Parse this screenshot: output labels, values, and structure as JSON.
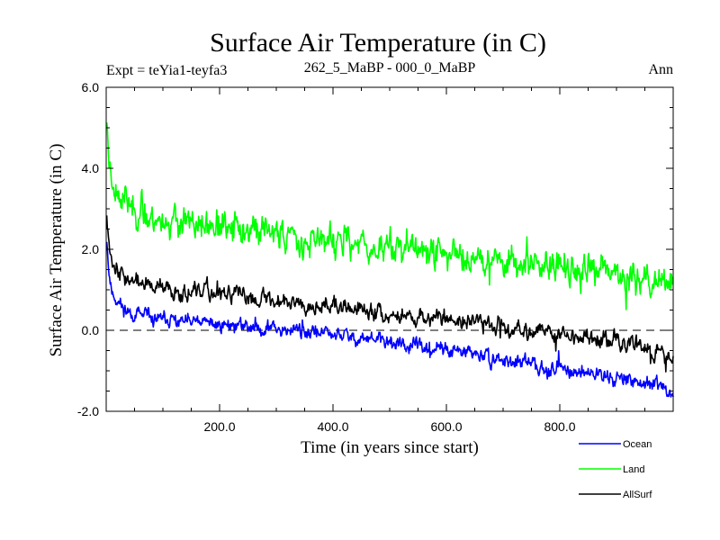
{
  "chart_data": {
    "type": "line",
    "title": "Surface Air Temperature (in C)",
    "subtitle_left": "Expt = teYia1-teyfa3",
    "subtitle_center": "262_5_MaBP - 000_0_MaBP",
    "subtitle_right": "Ann",
    "xlabel": "Time (in years since start)",
    "ylabel": "Surface Air Temperature (in C)",
    "xlim": [
      0,
      1000
    ],
    "ylim": [
      -2.0,
      6.0
    ],
    "x_ticks": [
      200,
      400,
      600,
      800
    ],
    "x_tick_labels": [
      "200.0",
      "400.0",
      "600.0",
      "800.0"
    ],
    "y_ticks": [
      -2,
      0,
      2,
      4,
      6
    ],
    "y_tick_labels": [
      "-2.0",
      "0.0",
      "2.0",
      "4.0",
      "6.0"
    ],
    "reference_line": 0.0,
    "series": [
      {
        "name": "Ocean",
        "color": "#0000ff",
        "x": [
          0,
          5,
          10,
          20,
          35,
          50,
          75,
          100,
          150,
          200,
          250,
          300,
          350,
          400,
          450,
          500,
          550,
          600,
          650,
          700,
          750,
          800,
          850,
          900,
          950,
          1000
        ],
        "values": [
          2.5,
          1.4,
          0.95,
          0.7,
          0.5,
          0.4,
          0.3,
          0.25,
          0.2,
          0.15,
          0.1,
          0.05,
          0.0,
          -0.1,
          -0.2,
          -0.3,
          -0.4,
          -0.5,
          -0.6,
          -0.75,
          -0.85,
          -0.95,
          -1.05,
          -1.15,
          -1.3,
          -1.55
        ],
        "noise": 0.12,
        "seed": 11
      },
      {
        "name": "Land",
        "color": "#00ff00",
        "x": [
          0,
          5,
          10,
          20,
          35,
          50,
          75,
          100,
          150,
          200,
          250,
          300,
          350,
          400,
          450,
          500,
          550,
          600,
          650,
          700,
          750,
          800,
          850,
          900,
          950,
          1000
        ],
        "values": [
          5.5,
          4.2,
          3.8,
          3.4,
          3.2,
          3.0,
          2.8,
          2.7,
          2.6,
          2.5,
          2.5,
          2.4,
          2.3,
          2.2,
          2.1,
          2.05,
          2.0,
          1.9,
          1.8,
          1.75,
          1.65,
          1.55,
          1.45,
          1.35,
          1.3,
          1.2
        ],
        "noise": 0.25,
        "seed": 23
      },
      {
        "name": "AllSurf",
        "color": "#000000",
        "x": [
          0,
          5,
          10,
          20,
          35,
          50,
          75,
          100,
          150,
          200,
          250,
          300,
          350,
          400,
          450,
          500,
          550,
          600,
          650,
          700,
          750,
          800,
          850,
          900,
          950,
          1000
        ],
        "values": [
          3.1,
          2.2,
          1.8,
          1.5,
          1.3,
          1.2,
          1.1,
          1.0,
          0.95,
          0.9,
          0.85,
          0.75,
          0.7,
          0.6,
          0.5,
          0.4,
          0.35,
          0.3,
          0.2,
          0.1,
          0.0,
          -0.1,
          -0.2,
          -0.3,
          -0.45,
          -0.65
        ],
        "noise": 0.14,
        "seed": 37
      }
    ],
    "legend_position": "bottom-right"
  }
}
